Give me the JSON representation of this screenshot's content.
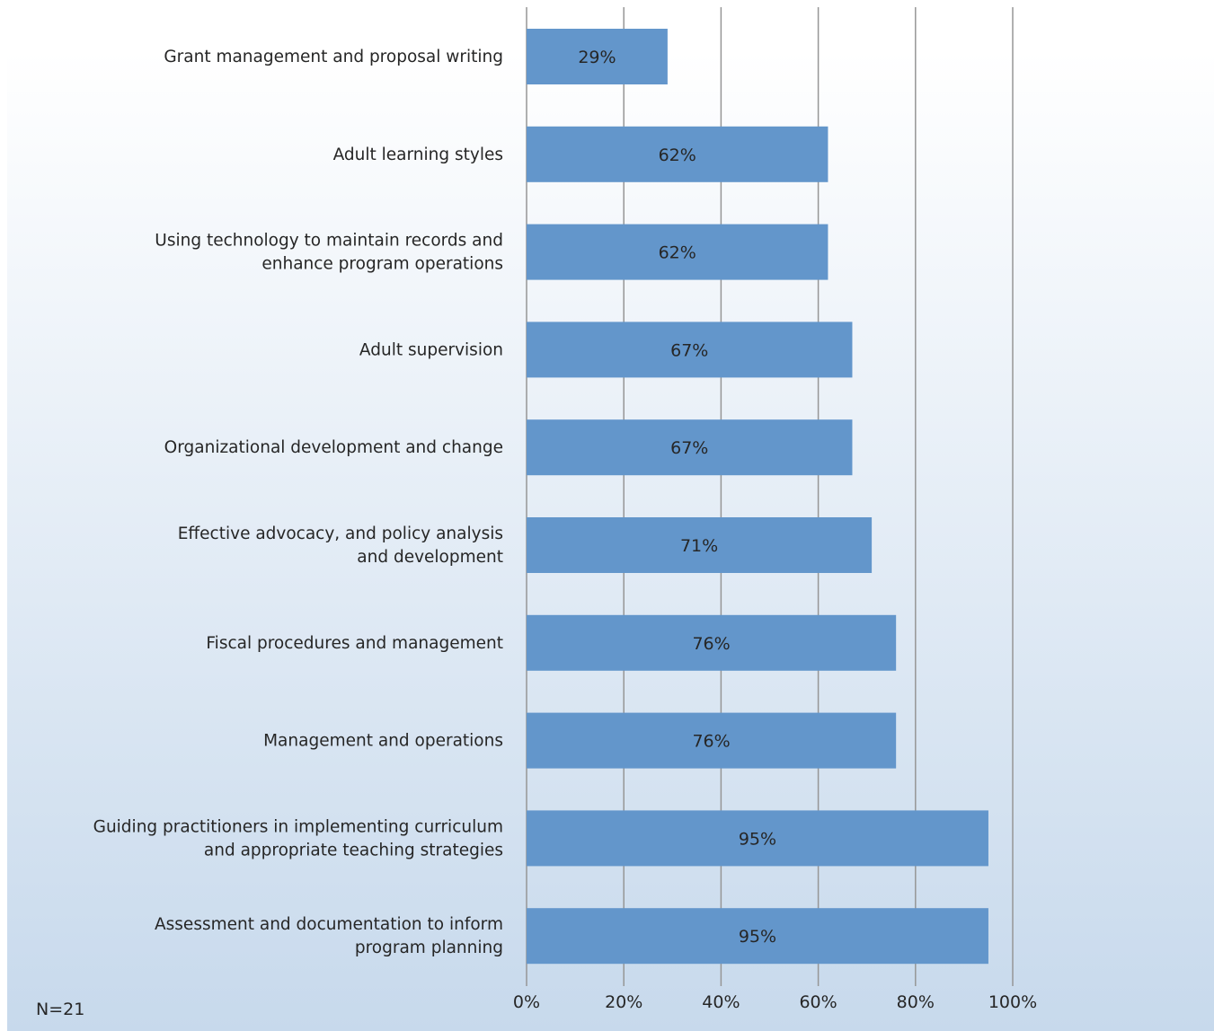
{
  "chart_data": {
    "type": "bar",
    "orientation": "horizontal",
    "categories": [
      "Grant management and proposal writing",
      "Adult learning styles",
      "Using technology to maintain records and enhance program operations",
      "Adult supervision",
      "Organizational development and change",
      "Effective advocacy, and policy analysis and development",
      "Fiscal procedures and management",
      "Management and operations",
      "Guiding practitioners in implementing curriculum and appropriate teaching strategies",
      "Assessment and documentation to inform program planning"
    ],
    "category_lines": [
      [
        "Grant management and proposal writing"
      ],
      [
        "Adult learning styles"
      ],
      [
        "Using technology to maintain records and",
        "enhance program operations"
      ],
      [
        "Adult supervision"
      ],
      [
        "Organizational development and change"
      ],
      [
        "Effective advocacy, and policy analysis",
        "and development"
      ],
      [
        "Fiscal procedures and management"
      ],
      [
        "Management and operations"
      ],
      [
        "Guiding practitioners in implementing curriculum",
        "and appropriate teaching strategies"
      ],
      [
        "Assessment and documentation to inform",
        "program planning"
      ]
    ],
    "values": [
      29,
      62,
      62,
      67,
      67,
      71,
      76,
      76,
      95,
      95
    ],
    "data_labels": [
      "29%",
      "62%",
      "62%",
      "67%",
      "67%",
      "71%",
      "76%",
      "76%",
      "95%",
      "95%"
    ],
    "xlim": [
      0,
      100
    ],
    "xticks": [
      0,
      20,
      40,
      60,
      80,
      100
    ],
    "xtick_labels": [
      "0%",
      "20%",
      "40%",
      "60%",
      "80%",
      "100%"
    ],
    "grid": "vertical",
    "bar_color": "#6396cb",
    "title": "",
    "xlabel": "",
    "ylabel": ""
  },
  "note": "N=21"
}
